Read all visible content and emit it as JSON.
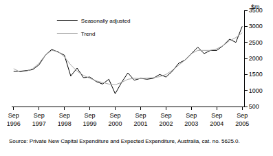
{
  "chart_data": {
    "type": "line",
    "categories": [
      "Sep 1996",
      null,
      null,
      null,
      "Sep 1997",
      null,
      null,
      null,
      "Sep 1998",
      null,
      null,
      null,
      "Sep 1999",
      null,
      null,
      null,
      "Sep 2000",
      null,
      null,
      null,
      "Sep 2001",
      null,
      null,
      null,
      "Sep 2002",
      null,
      null,
      null,
      "Sep 2003",
      null,
      null,
      null,
      "Sep 2004",
      null,
      null,
      null,
      "Sep 2005"
    ],
    "series": [
      {
        "name": "Seasonally adjusted",
        "color": "#000000",
        "values": [
          1600,
          1600,
          1620,
          1650,
          1800,
          2100,
          2280,
          2200,
          2100,
          1450,
          1700,
          1400,
          1420,
          1280,
          1200,
          1350,
          900,
          1250,
          1550,
          1320,
          1380,
          1350,
          1380,
          1500,
          1420,
          1600,
          1850,
          1950,
          2150,
          2350,
          2150,
          2250,
          2250,
          2400,
          2600,
          2500,
          3000
        ]
      },
      {
        "name": "Trend",
        "color": "#a6a6a6",
        "values": [
          1680,
          1580,
          1600,
          1680,
          1850,
          2100,
          2250,
          2220,
          2050,
          1800,
          1600,
          1470,
          1380,
          1300,
          1250,
          1200,
          1180,
          1250,
          1350,
          1380,
          1370,
          1380,
          1400,
          1430,
          1500,
          1630,
          1800,
          1950,
          2150,
          2250,
          2250,
          2250,
          2300,
          2400,
          2550,
          2650,
          2800
        ]
      }
    ],
    "ylabel": "$m",
    "ylim": [
      500,
      3500
    ],
    "yticks": [
      500,
      1000,
      1500,
      2000,
      2500,
      3000,
      3500
    ],
    "grid": false,
    "legend": "top left",
    "source": "Source: Private New Capital Expenditure and Expected Expenditure, Australia, cat. no. 5625.0."
  }
}
